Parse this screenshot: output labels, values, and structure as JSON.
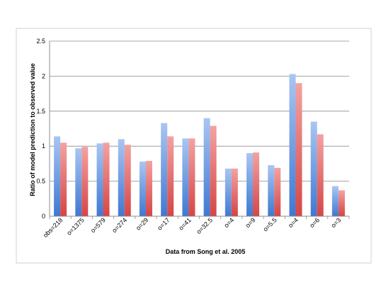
{
  "chart_data": {
    "type": "bar",
    "title": "",
    "xlabel": "Data from Song et al. 2005",
    "ylabel": "Ratio of model prediction to observed value",
    "ylim": [
      0,
      2.5
    ],
    "yticks": [
      "0",
      "0.5",
      "1",
      "1.5",
      "2",
      "2.5"
    ],
    "grid": true,
    "legend": "none",
    "categories": [
      "obs=218",
      "o=1375",
      "o=579",
      "o=274",
      "o=29",
      "o=17",
      "o=41",
      "o=32.5",
      "o=4",
      "o=9",
      "o=5.5",
      "o=4",
      "o=6",
      "o=3"
    ],
    "series": [
      {
        "color": "#5b8fdc",
        "values": [
          1.14,
          0.97,
          1.04,
          1.1,
          0.78,
          1.33,
          1.11,
          1.4,
          0.68,
          0.9,
          0.73,
          2.03,
          1.35,
          0.43
        ]
      },
      {
        "color": "#e85a5a",
        "values": [
          1.05,
          0.99,
          1.05,
          1.02,
          0.79,
          1.14,
          1.11,
          1.29,
          0.68,
          0.91,
          0.69,
          1.9,
          1.17,
          0.37
        ]
      }
    ]
  }
}
